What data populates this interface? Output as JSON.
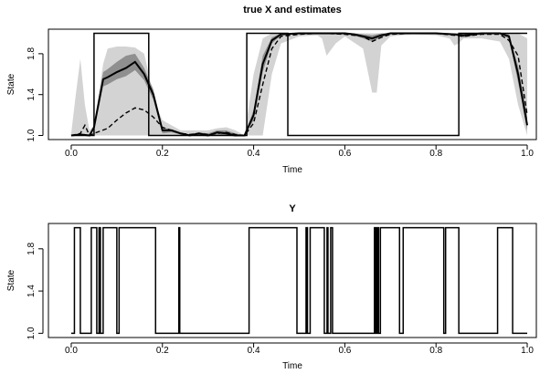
{
  "chart_data": [
    {
      "type": "line",
      "title": "true X and estimates",
      "xlabel": "Time",
      "ylabel": "State",
      "xlim": [
        -0.05,
        1.02
      ],
      "ylim": [
        0.96,
        2.04
      ],
      "xticks": [
        "0.0",
        "0.2",
        "0.4",
        "0.6",
        "0.8",
        "1.0"
      ],
      "yticks": [
        "1.0",
        "1.4",
        "1.8"
      ],
      "band_colors": {
        "outer": "#d3d3d3",
        "inner": "#8f8f8f"
      },
      "series": [
        {
          "style": "true-state",
          "x": [
            0,
            0.05,
            0.05,
            0.17,
            0.17,
            0.385,
            0.385,
            0.475,
            0.475,
            0.85,
            0.85,
            1.0
          ],
          "y": [
            1,
            1,
            2,
            2,
            1,
            1,
            2,
            2,
            1,
            1,
            2,
            2
          ]
        },
        {
          "style": "estimate-solid",
          "x": [
            0,
            0.02,
            0.04,
            0.05,
            0.07,
            0.08,
            0.1,
            0.12,
            0.14,
            0.16,
            0.18,
            0.2,
            0.22,
            0.24,
            0.26,
            0.28,
            0.3,
            0.32,
            0.34,
            0.36,
            0.38,
            0.4,
            0.42,
            0.44,
            0.46,
            0.5,
            0.55,
            0.6,
            0.62,
            0.64,
            0.66,
            0.68,
            0.7,
            0.75,
            0.8,
            0.84,
            0.86,
            0.9,
            0.94,
            0.96,
            0.98,
            1.0
          ],
          "y": [
            1,
            1.01,
            1,
            1.08,
            1.55,
            1.57,
            1.62,
            1.66,
            1.72,
            1.6,
            1.4,
            1.05,
            1.05,
            1.02,
            1.0,
            1.02,
            1.0,
            1.03,
            1.02,
            1.0,
            1.0,
            1.2,
            1.7,
            1.93,
            1.99,
            2.0,
            2.0,
            2.0,
            1.99,
            1.97,
            1.95,
            1.98,
            2.0,
            2.0,
            2.0,
            1.99,
            1.98,
            2.0,
            2.0,
            1.97,
            1.6,
            1.1
          ]
        },
        {
          "style": "estimate-dashed",
          "x": [
            0,
            0.02,
            0.03,
            0.04,
            0.05,
            0.08,
            0.1,
            0.12,
            0.14,
            0.16,
            0.18,
            0.2,
            0.22,
            0.24,
            0.26,
            0.28,
            0.3,
            0.32,
            0.34,
            0.36,
            0.38,
            0.4,
            0.42,
            0.44,
            0.46,
            0.5,
            0.55,
            0.6,
            0.62,
            0.64,
            0.66,
            0.68,
            0.7,
            0.75,
            0.8,
            0.84,
            0.86,
            0.9,
            0.94,
            0.96,
            0.98,
            1.0
          ],
          "y": [
            1,
            1.02,
            1.1,
            1.0,
            1.02,
            1.07,
            1.15,
            1.22,
            1.27,
            1.25,
            1.18,
            1.08,
            1.05,
            1.02,
            1.01,
            1.02,
            1.01,
            1.02,
            1.03,
            1.01,
            1.0,
            1.12,
            1.5,
            1.85,
            1.97,
            1.99,
            2.0,
            1.99,
            1.98,
            1.97,
            1.92,
            1.96,
            1.99,
            2.0,
            2.0,
            1.98,
            1.97,
            1.99,
            1.99,
            1.93,
            1.78,
            1.2
          ]
        }
      ],
      "bands": [
        {
          "level": "outer",
          "x": [
            0,
            0.01,
            0.02,
            0.03,
            0.04,
            0.05,
            0.07,
            0.08,
            0.1,
            0.12,
            0.14,
            0.16,
            0.17,
            0.18,
            0.2,
            0.22,
            0.24,
            0.26,
            0.28,
            0.3,
            0.32,
            0.34,
            0.36,
            0.38,
            0.4,
            0.42,
            0.44,
            0.46,
            0.5,
            0.54,
            0.55,
            0.56,
            0.58,
            0.6,
            0.64,
            0.66,
            0.67,
            0.68,
            0.7,
            0.75,
            0.8,
            0.83,
            0.84,
            0.85,
            0.86,
            0.9,
            0.94,
            0.96,
            0.98,
            1.0
          ],
          "upper": [
            1.02,
            1.4,
            1.75,
            1.3,
            1.05,
            1.1,
            1.7,
            1.85,
            1.87,
            1.87,
            1.86,
            1.8,
            1.6,
            1.35,
            1.15,
            1.1,
            1.05,
            1.05,
            1.05,
            1.05,
            1.07,
            1.08,
            1.05,
            1.0,
            1.6,
            1.95,
            2.0,
            2.0,
            2.0,
            2.0,
            2.0,
            2.0,
            2.0,
            2.0,
            2.0,
            2.0,
            2.0,
            2.0,
            2.0,
            2.0,
            2.0,
            2.0,
            2.0,
            2.0,
            2.0,
            2.0,
            2.0,
            2.0,
            2.0,
            1.95
          ],
          "lower": [
            1.0,
            1.0,
            1.0,
            1.0,
            1.0,
            1.0,
            1.0,
            1.0,
            1.0,
            1.0,
            1.0,
            1.0,
            1.0,
            1.0,
            1.0,
            1.0,
            1.0,
            1.0,
            1.0,
            1.0,
            1.0,
            1.0,
            1.0,
            1.0,
            1.0,
            1.0,
            1.6,
            1.9,
            1.97,
            1.98,
            1.95,
            1.78,
            1.9,
            1.97,
            1.85,
            1.42,
            1.42,
            1.88,
            1.97,
            1.99,
            1.98,
            1.95,
            1.88,
            1.9,
            1.95,
            1.95,
            1.92,
            1.75,
            1.3,
            1.0
          ]
        },
        {
          "level": "inner",
          "x": [
            0.05,
            0.07,
            0.08,
            0.1,
            0.12,
            0.14,
            0.16,
            0.18,
            0.2,
            0.22,
            0.24,
            0.26,
            0.28,
            0.3,
            0.32,
            0.34,
            0.36,
            0.38,
            0.4,
            0.42,
            0.44,
            0.46,
            0.5,
            0.6,
            0.62,
            0.64,
            0.66,
            0.68,
            0.7,
            0.8,
            0.84,
            0.86,
            0.9,
            0.94,
            0.96,
            0.98,
            1.0
          ],
          "upper": [
            1.1,
            1.62,
            1.65,
            1.72,
            1.78,
            1.8,
            1.66,
            1.45,
            1.08,
            1.06,
            1.03,
            1.01,
            1.03,
            1.02,
            1.05,
            1.05,
            1.02,
            1.0,
            1.25,
            1.78,
            1.96,
            2.0,
            2.0,
            2.0,
            2.0,
            1.99,
            1.98,
            2.0,
            2.0,
            2.0,
            2.0,
            2.0,
            2.0,
            2.0,
            1.99,
            1.68,
            1.18
          ],
          "lower": [
            1.05,
            1.48,
            1.5,
            1.55,
            1.58,
            1.64,
            1.54,
            1.35,
            1.02,
            1.03,
            1.01,
            1.0,
            1.0,
            0.99,
            1.01,
            1.0,
            0.99,
            1.0,
            1.15,
            1.62,
            1.9,
            1.98,
            1.99,
            1.99,
            1.98,
            1.95,
            1.92,
            1.96,
            1.99,
            1.99,
            1.98,
            1.96,
            1.99,
            1.99,
            1.95,
            1.52,
            1.05
          ]
        }
      ]
    },
    {
      "type": "line",
      "title": "Y",
      "xlabel": "Time",
      "ylabel": "State",
      "xlim": [
        -0.05,
        1.02
      ],
      "ylim": [
        0.96,
        2.04
      ],
      "xticks": [
        "0.0",
        "0.2",
        "0.4",
        "0.6",
        "0.8",
        "1.0"
      ],
      "yticks": [
        "1.0",
        "1.4",
        "1.8"
      ],
      "series": [
        {
          "style": "observed",
          "x": [
            0,
            0.007,
            0.007,
            0.02,
            0.02,
            0.044,
            0.044,
            0.056,
            0.056,
            0.061,
            0.061,
            0.064,
            0.064,
            0.07,
            0.07,
            0.1,
            0.1,
            0.105,
            0.105,
            0.185,
            0.185,
            0.236,
            0.236,
            0.238,
            0.238,
            0.39,
            0.39,
            0.495,
            0.495,
            0.515,
            0.515,
            0.518,
            0.518,
            0.524,
            0.524,
            0.555,
            0.555,
            0.561,
            0.561,
            0.563,
            0.563,
            0.569,
            0.569,
            0.573,
            0.573,
            0.665,
            0.665,
            0.668,
            0.668,
            0.671,
            0.671,
            0.674,
            0.674,
            0.678,
            0.678,
            0.72,
            0.72,
            0.728,
            0.728,
            0.817,
            0.817,
            0.821,
            0.821,
            0.85,
            0.85,
            0.935,
            0.935,
            0.968,
            0.968,
            1.0
          ],
          "y": [
            1,
            1,
            2,
            2,
            1,
            1,
            2,
            2,
            1,
            1,
            2,
            2,
            1,
            1,
            2,
            2,
            1,
            1,
            2,
            2,
            1,
            1,
            2,
            2,
            1,
            1,
            2,
            2,
            1,
            1,
            2,
            2,
            1,
            1,
            2,
            2,
            1,
            1,
            2,
            2,
            1,
            1,
            2,
            2,
            1,
            1,
            2,
            2,
            1,
            1,
            2,
            2,
            1,
            1,
            2,
            2,
            1,
            1,
            2,
            2,
            1,
            1,
            2,
            2,
            1,
            1,
            2,
            2,
            1,
            1
          ]
        }
      ]
    }
  ]
}
